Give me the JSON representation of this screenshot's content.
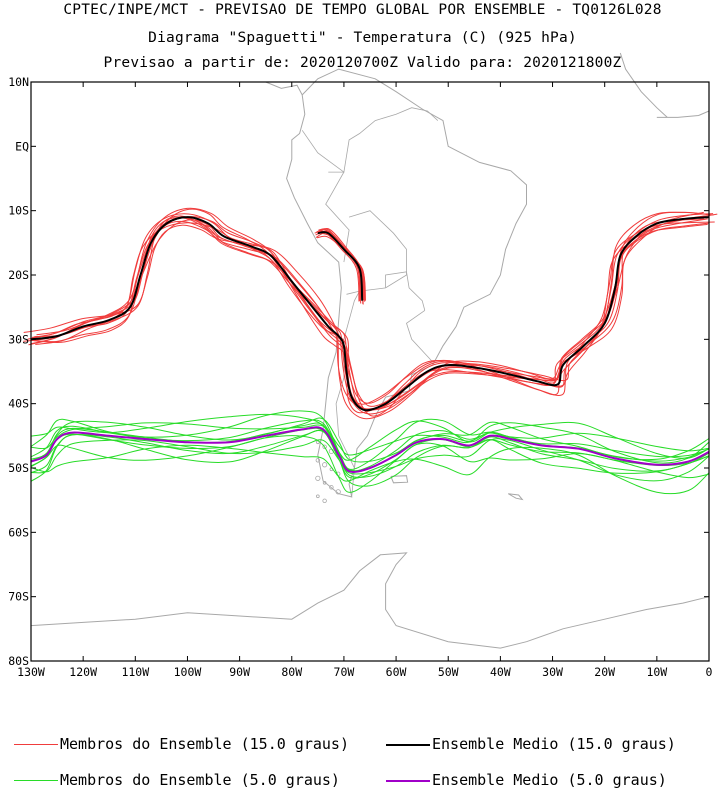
{
  "header": {
    "line1": "CPTEC/INPE/MCT - PREVISAO DE TEMPO GLOBAL POR ENSEMBLE - TQ0126L028",
    "line2": "Diagrama \"Spaguetti\" - Temperatura (C) (925 hPa)",
    "line3": "Previsao a partir de: 2020120700Z  Valido para: 2020121800Z"
  },
  "axes": {
    "lat_labels": [
      "10N",
      "EQ",
      "10S",
      "20S",
      "30S",
      "40S",
      "50S",
      "60S",
      "70S",
      "80S"
    ],
    "lat_values": [
      10,
      0,
      -10,
      -20,
      -30,
      -40,
      -50,
      -60,
      -70,
      -80
    ],
    "lon_labels": [
      "130W",
      "120W",
      "110W",
      "100W",
      "90W",
      "80W",
      "70W",
      "60W",
      "50W",
      "40W",
      "30W",
      "20W",
      "10W",
      "0"
    ],
    "lon_values": [
      -130,
      -120,
      -110,
      -100,
      -90,
      -80,
      -70,
      -60,
      -50,
      -40,
      -30,
      -20,
      -10,
      0
    ],
    "lon_range": [
      -130,
      0
    ],
    "lat_range": [
      -80,
      10
    ]
  },
  "legend": {
    "items": [
      {
        "label": "Membros do Ensemble (15.0 graus)",
        "color": "#f03c3c"
      },
      {
        "label": "Ensemble Medio (15.0 graus)",
        "color": "#000000"
      },
      {
        "label": "Membros do Ensemble (5.0 graus)",
        "color": "#28dc28"
      },
      {
        "label": "Ensemble Medio (5.0 graus)",
        "color": "#a000c8"
      }
    ]
  },
  "colors": {
    "coastline": "#a8a8a8",
    "frame": "#000000"
  },
  "contours": {
    "mean_15": [
      [
        -130,
        -30
      ],
      [
        -125,
        -29.5
      ],
      [
        -120,
        -28
      ],
      [
        -115,
        -27
      ],
      [
        -111,
        -25
      ],
      [
        -109,
        -20
      ],
      [
        -107,
        -15
      ],
      [
        -104,
        -12
      ],
      [
        -100,
        -11
      ],
      [
        -96,
        -12
      ],
      [
        -93,
        -14
      ],
      [
        -88,
        -15.5
      ],
      [
        -84,
        -17
      ],
      [
        -80,
        -21
      ],
      [
        -76,
        -25
      ],
      [
        -73,
        -28
      ],
      [
        -71,
        -29.5
      ],
      [
        -70,
        -31
      ],
      [
        -69.5,
        -35
      ],
      [
        -68.5,
        -39
      ],
      [
        -66,
        -41
      ],
      [
        -62,
        -40
      ],
      [
        -58,
        -37.5
      ],
      [
        -54,
        -35
      ],
      [
        -50,
        -34
      ],
      [
        -44,
        -34.5
      ],
      [
        -38,
        -35.5
      ],
      [
        -33,
        -36.5
      ],
      [
        -29,
        -37
      ],
      [
        -28,
        -34
      ],
      [
        -24,
        -31
      ],
      [
        -20,
        -27.5
      ],
      [
        -18,
        -22
      ],
      [
        -17,
        -17
      ],
      [
        -14,
        -14
      ],
      [
        -10,
        -12
      ],
      [
        -5,
        -11.3
      ],
      [
        0,
        -11
      ]
    ],
    "mean_15_andes": [
      [
        -75,
        -13.5
      ],
      [
        -73,
        -13.5
      ],
      [
        -70,
        -16
      ],
      [
        -67,
        -19
      ],
      [
        -66.5,
        -24
      ]
    ],
    "mean_5": [
      [
        -130,
        -49
      ],
      [
        -127,
        -48
      ],
      [
        -125,
        -45.5
      ],
      [
        -122,
        -44.5
      ],
      [
        -115,
        -45
      ],
      [
        -108,
        -45.5
      ],
      [
        -100,
        -46
      ],
      [
        -92,
        -46
      ],
      [
        -85,
        -45
      ],
      [
        -78,
        -44
      ],
      [
        -74,
        -44
      ],
      [
        -71,
        -48
      ],
      [
        -69,
        -50.5
      ],
      [
        -65,
        -50
      ],
      [
        -60,
        -48
      ],
      [
        -56,
        -46
      ],
      [
        -51,
        -45.5
      ],
      [
        -46,
        -46.5
      ],
      [
        -42,
        -45
      ],
      [
        -38,
        -45.5
      ],
      [
        -32,
        -46.5
      ],
      [
        -25,
        -47
      ],
      [
        -18,
        -48.5
      ],
      [
        -10,
        -49.5
      ],
      [
        -4,
        -49
      ],
      [
        0,
        -47.5
      ]
    ],
    "members_15_offsets": [
      [
        0,
        0
      ],
      [
        0.8,
        0.6
      ],
      [
        -0.7,
        -0.9
      ],
      [
        1.2,
        -0.4
      ],
      [
        -1.1,
        0.8
      ],
      [
        0.5,
        1.3
      ],
      [
        -0.4,
        -1.5
      ],
      [
        1.6,
        0.9
      ],
      [
        -1.5,
        -0.3
      ],
      [
        0.3,
        -1.1
      ],
      [
        -0.9,
        1.6
      ],
      [
        1.4,
        -1.3
      ]
    ],
    "members_5_offsets": [
      [
        0,
        1.2
      ],
      [
        0,
        -1.6
      ],
      [
        0,
        2.6
      ],
      [
        0,
        -3.2
      ],
      [
        0,
        0.6
      ],
      [
        0,
        -2.4
      ],
      [
        0,
        3.6
      ],
      [
        0,
        -0.9
      ],
      [
        0,
        1.9
      ],
      [
        0,
        -4.2
      ],
      [
        0,
        2.9
      ],
      [
        0,
        -2.8
      ]
    ]
  }
}
